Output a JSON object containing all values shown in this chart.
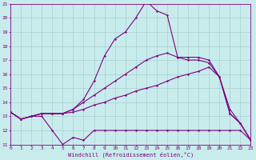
{
  "xlabel": "Windchill (Refroidissement éolien,°C)",
  "bg_color": "#c8ecec",
  "grid_color": "#a8d0d0",
  "line_color": "#800080",
  "xlim": [
    0,
    23
  ],
  "ylim": [
    11,
    21
  ],
  "xticks": [
    0,
    1,
    2,
    3,
    4,
    5,
    6,
    7,
    8,
    9,
    10,
    11,
    12,
    13,
    14,
    15,
    16,
    17,
    18,
    19,
    20,
    21,
    22,
    23
  ],
  "yticks": [
    11,
    12,
    13,
    14,
    15,
    16,
    17,
    18,
    19,
    20,
    21
  ],
  "line1_x": [
    0,
    1,
    2,
    3,
    4,
    5,
    6,
    7,
    8,
    9,
    10,
    11,
    12,
    13,
    14,
    15,
    16,
    17,
    18,
    19,
    20,
    21,
    22,
    23
  ],
  "line1_y": [
    13.3,
    12.8,
    13.0,
    13.0,
    12.0,
    11.0,
    11.5,
    11.3,
    12.0,
    12.0,
    12.0,
    12.0,
    12.0,
    12.0,
    12.0,
    12.0,
    12.0,
    12.0,
    12.0,
    12.0,
    12.0,
    12.0,
    12.0,
    11.3
  ],
  "line2_x": [
    0,
    1,
    2,
    3,
    4,
    5,
    6,
    7,
    8,
    9,
    10,
    11,
    12,
    13,
    14,
    15,
    16,
    17,
    18,
    19,
    20,
    21,
    22,
    23
  ],
  "line2_y": [
    13.3,
    12.8,
    13.0,
    13.2,
    13.2,
    13.2,
    13.3,
    13.5,
    13.8,
    14.0,
    14.3,
    14.5,
    14.8,
    15.0,
    15.2,
    15.5,
    15.8,
    16.0,
    16.2,
    16.5,
    15.8,
    13.5,
    12.5,
    11.3
  ],
  "line3_x": [
    0,
    1,
    2,
    3,
    4,
    5,
    6,
    7,
    8,
    9,
    10,
    11,
    12,
    13,
    14,
    15,
    16,
    17,
    18,
    19,
    20,
    21,
    22,
    23
  ],
  "line3_y": [
    13.3,
    12.8,
    13.0,
    13.2,
    13.2,
    13.2,
    13.5,
    14.0,
    14.5,
    15.0,
    15.5,
    16.0,
    16.5,
    17.0,
    17.3,
    17.5,
    17.2,
    17.2,
    17.2,
    17.0,
    15.8,
    13.2,
    12.5,
    11.3
  ],
  "line4_x": [
    0,
    1,
    2,
    3,
    4,
    5,
    6,
    7,
    8,
    9,
    10,
    11,
    12,
    13,
    14,
    15,
    16,
    17,
    18,
    19,
    20,
    21,
    22,
    23
  ],
  "line4_y": [
    13.3,
    12.8,
    13.0,
    13.2,
    13.2,
    13.2,
    13.5,
    14.2,
    15.5,
    17.3,
    18.5,
    19.0,
    20.0,
    21.2,
    20.5,
    20.2,
    17.2,
    17.0,
    17.0,
    16.8,
    15.8,
    13.2,
    12.5,
    11.3
  ]
}
